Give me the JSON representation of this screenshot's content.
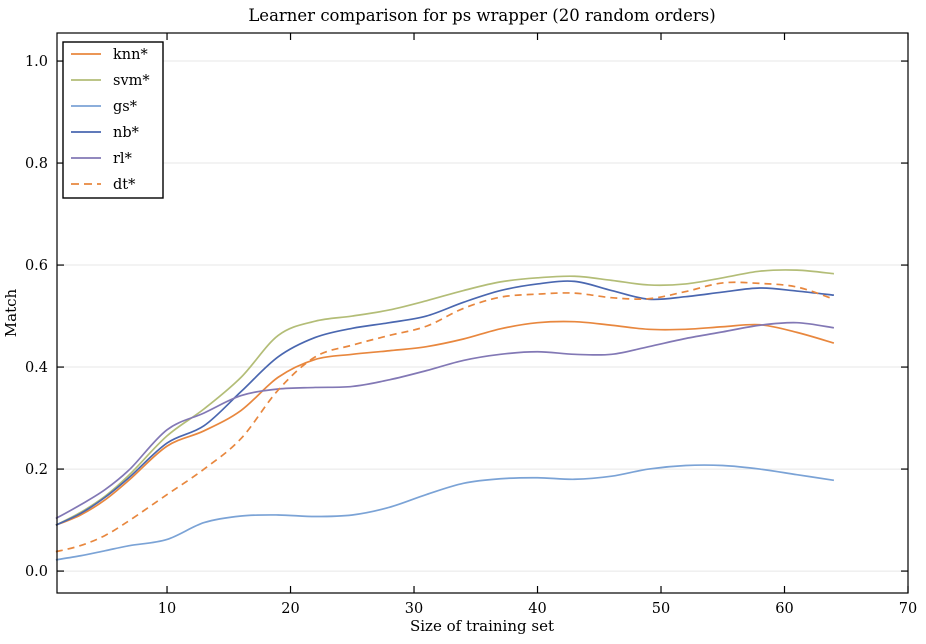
{
  "figure": {
    "title": "Learner comparison for ps wrapper (20 random orders)",
    "xlabel": "Size of training set",
    "ylabel": "Match"
  },
  "colors": {
    "background": "#ffffff",
    "grid": "#e7e7e7",
    "spine": "#000000",
    "knn": "#e8873e",
    "svm": "#b3bd77",
    "gs": "#7ba3d6",
    "nb": "#4a67b0",
    "rl": "#8278b5",
    "dt": "#e8873e"
  },
  "chart_data": {
    "type": "line",
    "title": "Learner comparison for ps wrapper (20 random orders)",
    "xlabel": "Size of training set",
    "ylabel": "Match",
    "xlim": [
      1.09,
      70.0
    ],
    "ylim": [
      -0.043,
      1.055
    ],
    "x_ticks": [
      10,
      20,
      30,
      40,
      50,
      60,
      70
    ],
    "x_tick_labels": [
      "10",
      "20",
      "30",
      "40",
      "50",
      "60",
      "70"
    ],
    "y_ticks": [
      0.0,
      0.2,
      0.4,
      0.6,
      0.8,
      1.0
    ],
    "y_tick_labels": [
      "0.0",
      "0.2",
      "0.4",
      "0.6",
      "0.8",
      "1.0"
    ],
    "grid": "horizontal-only",
    "legend_position": "upper-left",
    "x": [
      1,
      3,
      5,
      7,
      10,
      13,
      16,
      19,
      22,
      25,
      28,
      31,
      34,
      37,
      40,
      43,
      46,
      49,
      52,
      55,
      58,
      61,
      64
    ],
    "series": [
      {
        "name": "knn*",
        "key": "knn",
        "color": "#e8873e",
        "dash": false,
        "values": [
          0.09,
          0.11,
          0.14,
          0.18,
          0.245,
          0.275,
          0.315,
          0.38,
          0.415,
          0.425,
          0.432,
          0.44,
          0.455,
          0.475,
          0.487,
          0.489,
          0.482,
          0.474,
          0.474,
          0.479,
          0.483,
          0.468,
          0.447
        ]
      },
      {
        "name": "svm*",
        "key": "svm",
        "color": "#b3bd77",
        "dash": false,
        "values": [
          0.09,
          0.115,
          0.147,
          0.19,
          0.265,
          0.318,
          0.38,
          0.462,
          0.49,
          0.5,
          0.512,
          0.53,
          0.55,
          0.567,
          0.575,
          0.578,
          0.57,
          0.561,
          0.563,
          0.575,
          0.588,
          0.59,
          0.583
        ]
      },
      {
        "name": "gs*",
        "key": "gs",
        "color": "#7ba3d6",
        "dash": false,
        "values": [
          0.022,
          0.03,
          0.04,
          0.05,
          0.062,
          0.095,
          0.108,
          0.11,
          0.107,
          0.11,
          0.125,
          0.15,
          0.172,
          0.181,
          0.183,
          0.18,
          0.186,
          0.2,
          0.207,
          0.207,
          0.2,
          0.189,
          0.178
        ]
      },
      {
        "name": "nb*",
        "key": "nb",
        "color": "#4a67b0",
        "dash": false,
        "values": [
          0.09,
          0.113,
          0.145,
          0.185,
          0.251,
          0.285,
          0.352,
          0.42,
          0.458,
          0.476,
          0.487,
          0.5,
          0.527,
          0.55,
          0.563,
          0.568,
          0.55,
          0.533,
          0.538,
          0.547,
          0.555,
          0.549,
          0.541
        ]
      },
      {
        "name": "rl*",
        "key": "rl",
        "color": "#8278b5",
        "dash": false,
        "values": [
          0.103,
          0.13,
          0.16,
          0.2,
          0.277,
          0.31,
          0.344,
          0.357,
          0.36,
          0.362,
          0.375,
          0.393,
          0.413,
          0.425,
          0.43,
          0.425,
          0.425,
          0.44,
          0.456,
          0.469,
          0.482,
          0.487,
          0.477
        ]
      },
      {
        "name": "dt*",
        "key": "dt",
        "color": "#e8873e",
        "dash": true,
        "values": [
          0.038,
          0.05,
          0.07,
          0.1,
          0.15,
          0.2,
          0.26,
          0.355,
          0.42,
          0.443,
          0.462,
          0.48,
          0.515,
          0.537,
          0.543,
          0.545,
          0.536,
          0.534,
          0.548,
          0.565,
          0.564,
          0.557,
          0.533
        ]
      }
    ]
  },
  "legend": {
    "entries": [
      {
        "label": "knn*"
      },
      {
        "label": "svm*"
      },
      {
        "label": "gs*"
      },
      {
        "label": "nb*"
      },
      {
        "label": "rl*"
      },
      {
        "label": "dt*"
      }
    ]
  }
}
